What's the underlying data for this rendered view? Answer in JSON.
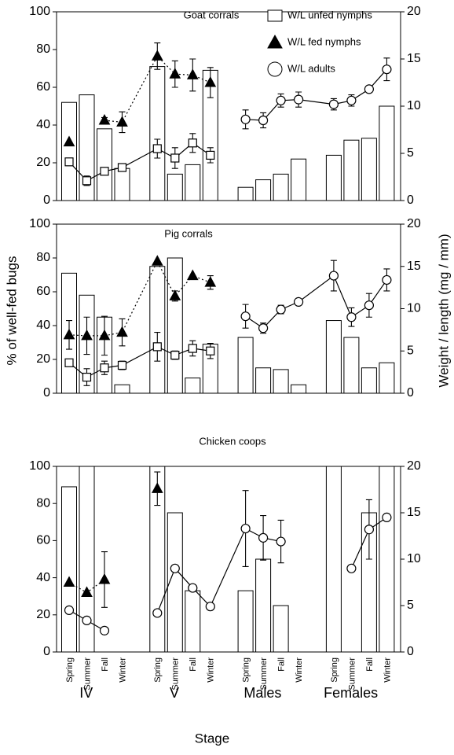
{
  "chart_data": [
    {
      "type": "bar",
      "title": "Goat corrals",
      "ylim": [
        0,
        100
      ],
      "yticks": [
        0,
        20,
        40,
        60,
        80,
        100
      ],
      "y2lim": [
        0,
        20
      ],
      "y2ticks": [
        0,
        5,
        10,
        15,
        20
      ],
      "legend": "top-right",
      "series": [
        {
          "marker": "bar",
          "axis": "y",
          "color": "#ffffff",
          "values": [
            52,
            56,
            38,
            17,
            71,
            14,
            19,
            69,
            7,
            11,
            14,
            22,
            24,
            32,
            33,
            50
          ]
        },
        {
          "name": "W/L unfed nymphs",
          "marker": "square",
          "axis": "y2",
          "color": "#ffffff",
          "dash": false,
          "values": [
            4.1,
            2.1,
            3.1,
            3.5,
            5.5,
            4.5,
            6.1,
            4.8,
            null,
            null,
            null,
            null,
            null,
            null,
            null,
            null
          ],
          "errors": [
            0.4,
            0.5,
            0.3,
            0.4,
            1.0,
            1.1,
            1.0,
            0.8,
            null,
            null,
            null,
            null,
            null,
            null,
            null,
            null
          ]
        },
        {
          "name": "W/L fed nymphs",
          "marker": "triangle",
          "axis": "y2",
          "color": "#000000",
          "dash": true,
          "values": [
            6.2,
            null,
            8.5,
            8.3,
            15.3,
            13.4,
            13.3,
            12.5,
            null,
            null,
            null,
            null,
            null,
            null,
            null,
            null
          ],
          "errors": [
            null,
            null,
            0.3,
            1.1,
            1.4,
            1.4,
            1.7,
            1.6,
            null,
            null,
            null,
            null,
            null,
            null,
            null,
            null
          ]
        },
        {
          "name": "W/L adults",
          "marker": "circle",
          "axis": "y2",
          "color": "#ffffff",
          "dash": false,
          "values": [
            null,
            null,
            null,
            null,
            null,
            null,
            null,
            null,
            8.6,
            8.5,
            10.6,
            10.7,
            10.2,
            10.6,
            11.8,
            13.9
          ],
          "errors": [
            null,
            null,
            null,
            null,
            null,
            null,
            null,
            null,
            1.0,
            0.8,
            0.7,
            0.8,
            0.6,
            0.6,
            0.3,
            1.2
          ]
        }
      ]
    },
    {
      "type": "bar",
      "title": "Pig corrals",
      "ylabel": "% of well-fed bugs",
      "y2label": "Weight / length (mg / mm)",
      "ylim": [
        0,
        100
      ],
      "yticks": [
        0,
        20,
        40,
        60,
        80,
        100
      ],
      "y2lim": [
        0,
        20
      ],
      "y2ticks": [
        0,
        5,
        10,
        15,
        20
      ],
      "series": [
        {
          "marker": "bar",
          "axis": "y",
          "color": "#ffffff",
          "values": [
            71,
            58,
            45,
            5,
            75,
            80,
            9,
            29,
            33,
            15,
            14,
            5,
            43,
            33,
            15,
            18
          ]
        },
        {
          "marker": "square",
          "axis": "y2",
          "color": "#ffffff",
          "dash": false,
          "values": [
            3.6,
            1.9,
            3.0,
            3.3,
            5.5,
            4.5,
            5.3,
            5.0,
            null,
            null,
            null,
            null,
            null,
            null,
            null,
            null
          ],
          "errors": [
            0.4,
            1.0,
            0.8,
            0.5,
            1.7,
            0.5,
            0.9,
            0.9,
            null,
            null,
            null,
            null,
            null,
            null,
            null,
            null
          ]
        },
        {
          "marker": "triangle",
          "axis": "y2",
          "color": "#000000",
          "dash": true,
          "values": [
            6.9,
            6.8,
            6.8,
            7.2,
            15.6,
            11.5,
            13.9,
            13.1,
            null,
            null,
            null,
            null,
            null,
            null,
            null,
            null
          ],
          "errors": [
            1.7,
            2.2,
            2.3,
            1.6,
            null,
            0.6,
            null,
            0.8,
            null,
            null,
            null,
            null,
            null,
            null,
            null,
            null
          ]
        },
        {
          "marker": "circle",
          "axis": "y2",
          "color": "#ffffff",
          "dash": false,
          "values": [
            null,
            null,
            null,
            null,
            null,
            null,
            null,
            null,
            9.1,
            7.7,
            9.9,
            10.8,
            13.9,
            9.0,
            10.4,
            13.4
          ],
          "errors": [
            null,
            null,
            null,
            null,
            null,
            null,
            null,
            null,
            1.4,
            0.6,
            0.5,
            0.3,
            1.8,
            1.1,
            1.4,
            1.3
          ]
        }
      ]
    },
    {
      "type": "bar",
      "title": "Chicken coops",
      "xlabel": "Stage",
      "categories": [
        "Spring",
        "Summer",
        "Fall",
        "Winter",
        "Spring",
        "Summer",
        "Fall",
        "Winter",
        "Spring",
        "Summer",
        "Fall",
        "Winter",
        "Spring",
        "Summer",
        "Fall",
        "Winter"
      ],
      "groups": [
        "IV",
        "V",
        "Males",
        "Females"
      ],
      "ylim": [
        0,
        100
      ],
      "yticks": [
        0,
        20,
        40,
        60,
        80,
        100
      ],
      "y2lim": [
        0,
        20
      ],
      "y2ticks": [
        0,
        5,
        10,
        15,
        20
      ],
      "series": [
        {
          "marker": "bar",
          "axis": "y",
          "color": "#ffffff",
          "values": [
            89,
            100,
            null,
            null,
            100,
            75,
            33,
            null,
            33,
            50,
            25,
            null,
            100,
            null,
            75,
            100
          ]
        },
        {
          "marker": "triangle",
          "axis": "y2",
          "color": "#000000",
          "dash": true,
          "values": [
            7.5,
            6.4,
            7.8,
            null,
            17.6,
            null,
            null,
            null,
            null,
            null,
            null,
            null,
            null,
            null,
            null,
            null
          ],
          "errors": [
            null,
            null,
            3.0,
            null,
            1.8,
            null,
            null,
            null,
            null,
            null,
            null,
            null,
            null,
            null,
            null,
            null
          ]
        },
        {
          "marker": "circle",
          "axis": "y2",
          "color": "#ffffff",
          "dash": false,
          "values": [
            4.5,
            3.4,
            2.3,
            null,
            4.2,
            9.0,
            6.9,
            4.9,
            13.3,
            12.3,
            11.9,
            null,
            null,
            9.0,
            13.2,
            14.5
          ],
          "errors": [
            null,
            null,
            null,
            null,
            null,
            null,
            null,
            null,
            4.1,
            2.4,
            2.3,
            null,
            null,
            null,
            3.2,
            null
          ]
        }
      ]
    }
  ]
}
